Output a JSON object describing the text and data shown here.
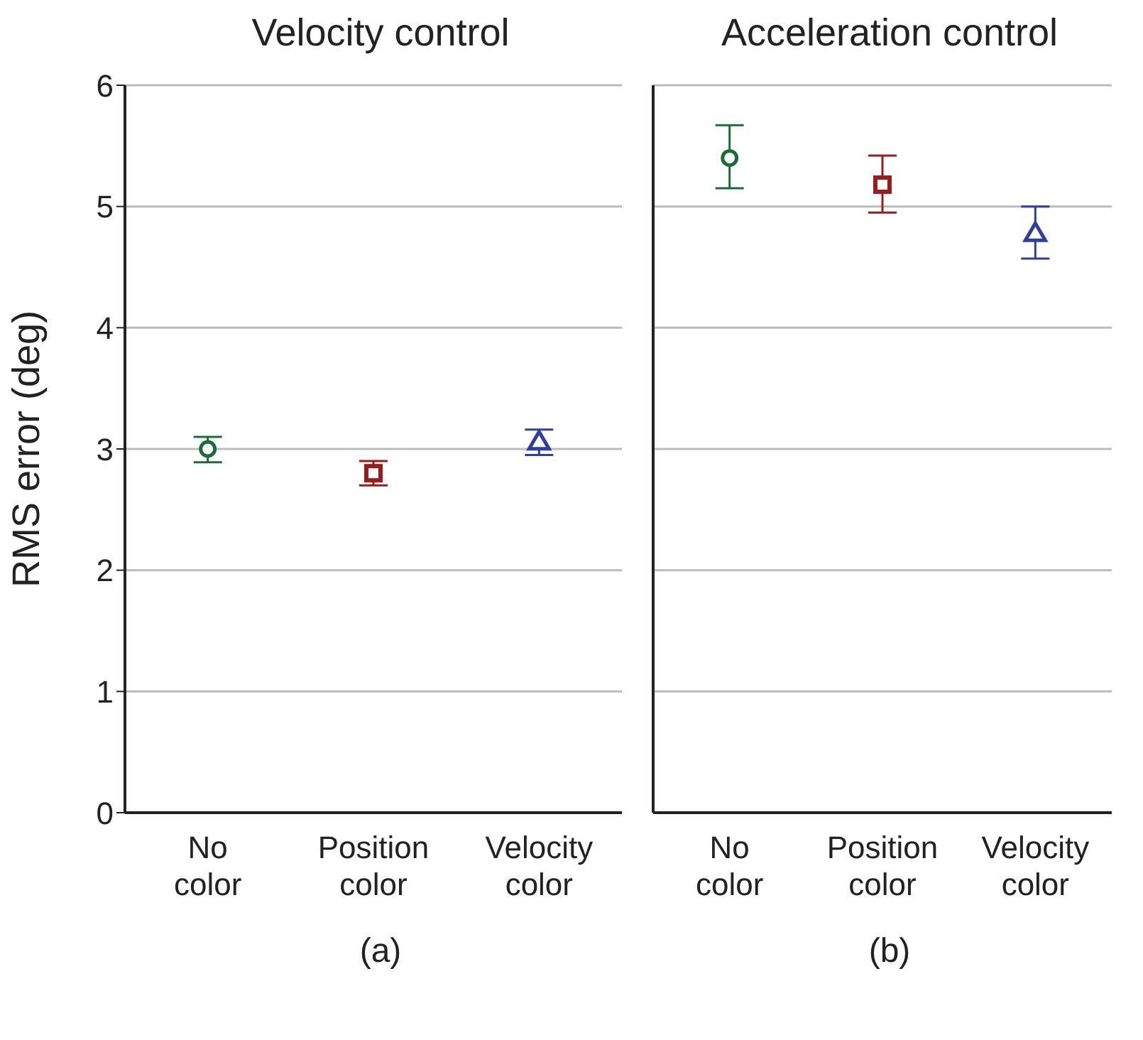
{
  "chart_data": [
    {
      "type": "scatter",
      "title": "Velocity control",
      "ylabel": "RMS error (deg)",
      "categories": [
        "No color",
        "Position color",
        "Velocity color"
      ],
      "ylim": [
        0,
        6
      ],
      "yticks": [
        0,
        1,
        2,
        3,
        4,
        5,
        6
      ],
      "grid": "y",
      "annotations": [
        "(a)"
      ],
      "series": [
        {
          "color": "#1e6b3a",
          "marker": "circle",
          "values": [
            3.0,
            null,
            null
          ],
          "errors": [
            [
              2.89,
              3.1
            ],
            null,
            null
          ]
        },
        {
          "color": "#9b1c1c",
          "marker": "square",
          "values": [
            null,
            2.8,
            null
          ],
          "errors": [
            null,
            [
              2.7,
              2.9
            ],
            null
          ]
        },
        {
          "color": "#2e3f9e",
          "marker": "triangle",
          "values": [
            null,
            null,
            3.06
          ],
          "errors": [
            null,
            null,
            [
              2.95,
              3.16
            ]
          ]
        }
      ]
    },
    {
      "type": "scatter",
      "title": "Acceleration control",
      "categories": [
        "No color",
        "Position color",
        "Velocity color"
      ],
      "ylim": [
        0,
        6
      ],
      "yticks": [
        0,
        1,
        2,
        3,
        4,
        5,
        6
      ],
      "grid": "y",
      "tick_labels": "x",
      "annotations": [
        "(b)"
      ],
      "series": [
        {
          "color": "#1e6b3a",
          "marker": "circle",
          "values": [
            5.4,
            null,
            null
          ],
          "errors": [
            [
              5.15,
              5.67
            ],
            null,
            null
          ]
        },
        {
          "color": "#9b1c1c",
          "marker": "square",
          "values": [
            null,
            5.18,
            null
          ],
          "errors": [
            null,
            [
              4.95,
              5.42
            ],
            null
          ]
        },
        {
          "color": "#2e3f9e",
          "marker": "triangle",
          "values": [
            null,
            null,
            4.78
          ],
          "errors": [
            null,
            null,
            [
              4.57,
              5.0
            ]
          ]
        }
      ]
    }
  ]
}
